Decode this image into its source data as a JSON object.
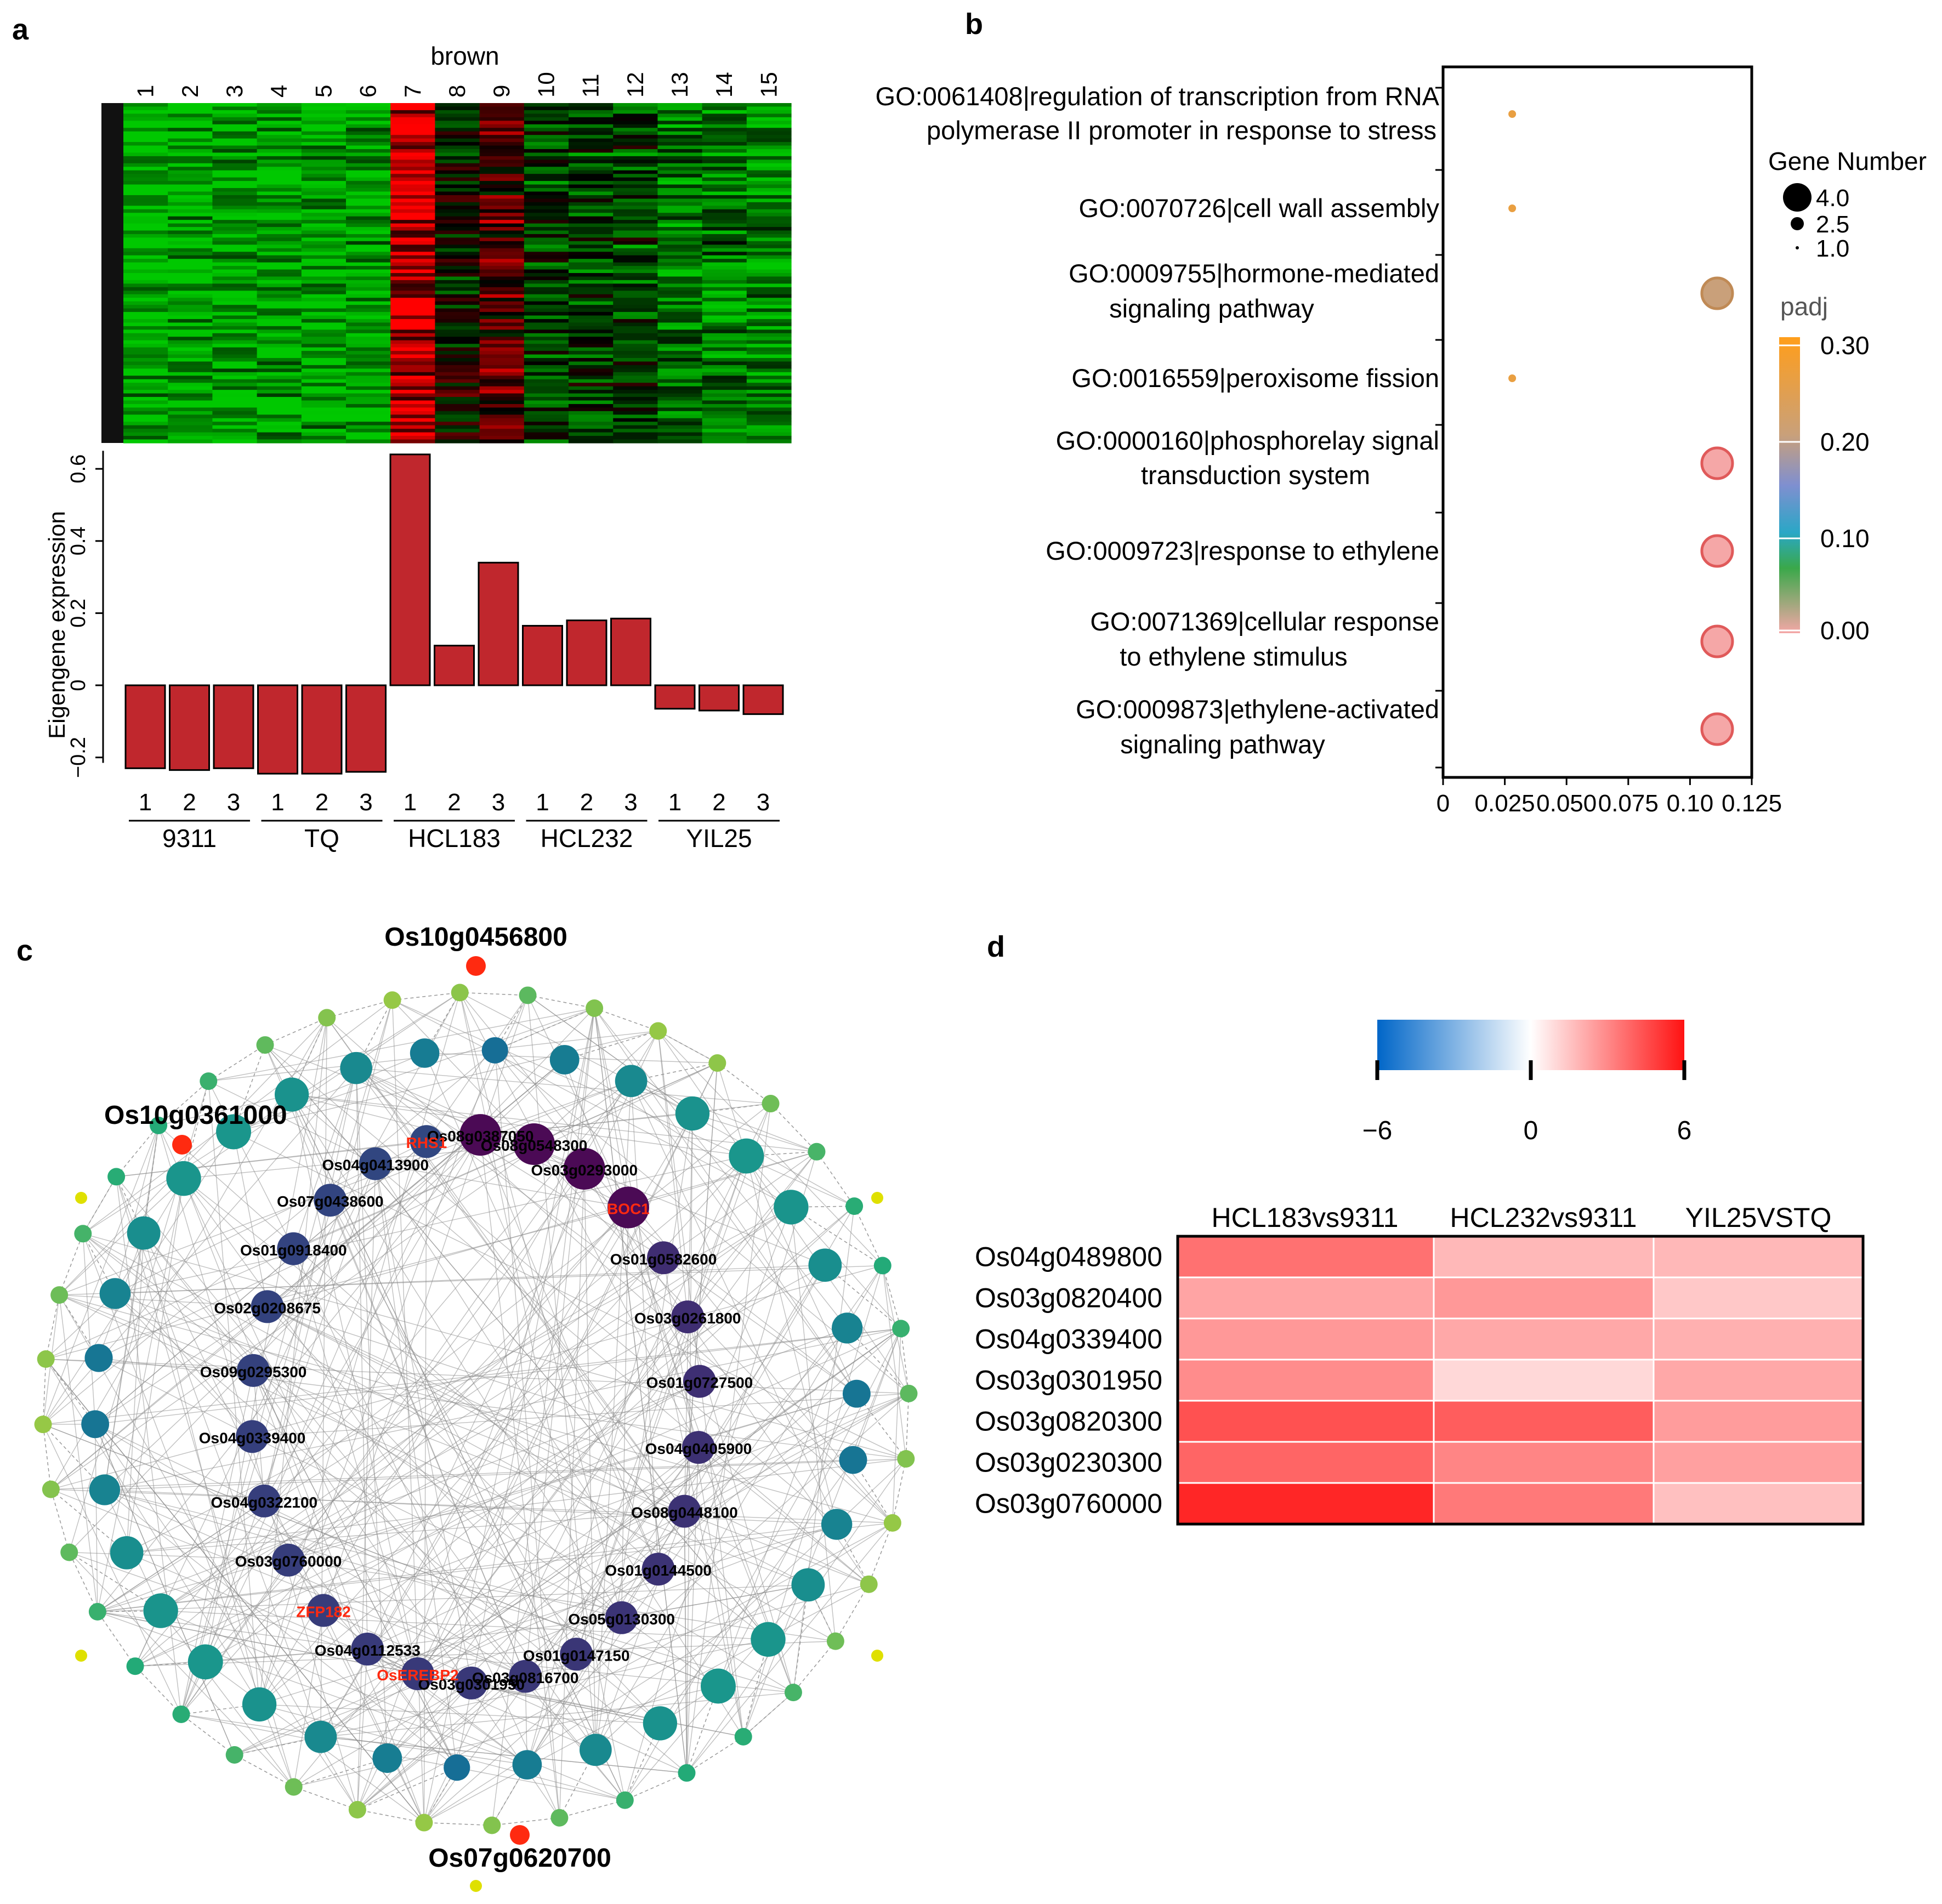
{
  "panels": {
    "a": "a",
    "b": "b",
    "c": "c",
    "d": "d"
  },
  "colors": {
    "bar": "#c0272d",
    "high": "#ff0000",
    "low": "#00c000",
    "mid": "#000000",
    "neg": "#0070c0",
    "pos": "#ff1a1a"
  },
  "chart_data": [
    {
      "id": "a-heatmap",
      "type": "heatmap",
      "title": "brown",
      "column_labels": [
        "1",
        "2",
        "3",
        "4",
        "5",
        "6",
        "7",
        "8",
        "9",
        "10",
        "11",
        "12",
        "13",
        "14",
        "15"
      ],
      "row_count": 96,
      "column_mean_expression": [
        -0.9,
        -0.9,
        -0.85,
        -0.85,
        -0.85,
        -0.85,
        0.85,
        -0.1,
        0.3,
        -0.3,
        -0.35,
        -0.35,
        -0.6,
        -0.6,
        -0.65
      ],
      "colorscale": [
        "green",
        "black",
        "red"
      ]
    },
    {
      "id": "a-bars",
      "type": "bar",
      "ylabel": "Eigengene expression",
      "ylim": [
        -0.25,
        0.65
      ],
      "yticks": [
        -0.2,
        0,
        0.2,
        0.4,
        0.6
      ],
      "ytick_labels": [
        "−0.2",
        "0",
        "0.2",
        "0.4",
        "0.6"
      ],
      "categories": [
        "1",
        "2",
        "3",
        "1",
        "2",
        "3",
        "1",
        "2",
        "3",
        "1",
        "2",
        "3",
        "1",
        "2",
        "3"
      ],
      "values": [
        -0.23,
        -0.235,
        -0.23,
        -0.245,
        -0.245,
        -0.24,
        0.64,
        0.11,
        0.34,
        0.165,
        0.18,
        0.185,
        -0.065,
        -0.07,
        -0.08
      ],
      "groups": [
        {
          "name": "9311",
          "start": 0,
          "end": 2
        },
        {
          "name": "TQ",
          "start": 3,
          "end": 5
        },
        {
          "name": "HCL183",
          "start": 6,
          "end": 8
        },
        {
          "name": "HCL232",
          "start": 9,
          "end": 11
        },
        {
          "name": "YIL25",
          "start": 12,
          "end": 14
        }
      ]
    },
    {
      "id": "b-dotplot",
      "type": "scatter",
      "xlim": [
        0,
        0.125
      ],
      "xticks": [
        0,
        0.025,
        0.05,
        0.075,
        0.1,
        0.125
      ],
      "xtick_labels": [
        "0",
        "0.025",
        "0.050",
        "0.075",
        "0.10",
        "0.125"
      ],
      "terms": [
        {
          "line1": "GO:0061408|regulation of transcription from RNA",
          "line2": "polymerase II promoter in response to stress",
          "x": 0.028,
          "genes": 1,
          "padj": 0.28
        },
        {
          "line1": "GO:0070726|cell wall assembly",
          "line2": "",
          "x": 0.028,
          "genes": 1,
          "padj": 0.28
        },
        {
          "line1": "GO:0009755|hormone-mediated",
          "line2": "signaling pathway",
          "x": 0.111,
          "genes": 4,
          "padj": 0.25
        },
        {
          "line1": "GO:0016559|peroxisome fission",
          "line2": "",
          "x": 0.028,
          "genes": 1,
          "padj": 0.28
        },
        {
          "line1": "GO:0000160|phosphorelay signal",
          "line2": "transduction system",
          "x": 0.111,
          "genes": 4,
          "padj": 0.0
        },
        {
          "line1": "GO:0009723|response to ethylene",
          "line2": "",
          "x": 0.111,
          "genes": 4,
          "padj": 0.0
        },
        {
          "line1": "GO:0071369|cellular response",
          "line2": "to ethylene stimulus",
          "x": 0.111,
          "genes": 4,
          "padj": 0.0
        },
        {
          "line1": "GO:0009873|ethylene-activated",
          "line2": "signaling pathway",
          "x": 0.111,
          "genes": 4,
          "padj": 0.0
        }
      ],
      "size_legend": {
        "title": "Gene Number",
        "values": [
          4.0,
          2.5,
          1.0
        ],
        "labels": [
          "4.0",
          "2.5",
          "1.0"
        ]
      },
      "color_legend": {
        "title": "padj",
        "ticks": [
          0.3,
          0.2,
          0.1,
          0.0
        ],
        "labels": [
          "0.30",
          "0.20",
          "0.10",
          "0.00"
        ]
      }
    },
    {
      "id": "c-network",
      "type": "network",
      "hub_labels": [
        "Os10g0456800",
        "Os10g0361000",
        "Os07g0620700"
      ],
      "inner_ring": [
        {
          "name": "Os08g0387050",
          "label": "Os08g0387050",
          "red": false
        },
        {
          "name": "Os08g0548300",
          "label": "Os08g0548300",
          "red": false
        },
        {
          "name": "Os03g0293000",
          "label": "Os03g0293000",
          "red": false
        },
        {
          "name": "BOC1",
          "label": "BOC1",
          "red": true
        },
        {
          "name": "Os01g0582600",
          "label": "Os01g0582600",
          "red": false
        },
        {
          "name": "Os03g0261800",
          "label": "Os03g0261800",
          "red": false
        },
        {
          "name": "Os01g0727500",
          "label": "Os01g0727500",
          "red": false
        },
        {
          "name": "Os04g0405900",
          "label": "Os04g0405900",
          "red": false
        },
        {
          "name": "Os08g0448100",
          "label": "Os08g0448100",
          "red": false
        },
        {
          "name": "Os01g0144500",
          "label": "Os01g0144500",
          "red": false
        },
        {
          "name": "Os05g0130300",
          "label": "Os05g0130300",
          "red": false
        },
        {
          "name": "Os01g0147150",
          "label": "Os01g0147150",
          "red": false
        },
        {
          "name": "Os03g0816700",
          "label": "Os03g0816700",
          "red": false
        },
        {
          "name": "Os03g0301950",
          "label": "Os03g0301950",
          "red": false
        },
        {
          "name": "OsEREBP2",
          "label": "OsEREBP2",
          "red": true
        },
        {
          "name": "Os04g0112533",
          "label": "Os04g0112533",
          "red": false
        },
        {
          "name": "ZFP182",
          "label": "ZFP182",
          "red": true
        },
        {
          "name": "Os03g0760000",
          "label": "Os03g0760000",
          "red": false
        },
        {
          "name": "Os04g0322100",
          "label": "Os04g0322100",
          "red": false
        },
        {
          "name": "Os04g0339400",
          "label": "Os04g0339400",
          "red": false
        },
        {
          "name": "Os09g0295300",
          "label": "Os09g0295300",
          "red": false
        },
        {
          "name": "Os02g0208675",
          "label": "Os02g0208675",
          "red": false
        },
        {
          "name": "Os01g0918400",
          "label": "Os01g0918400",
          "red": false
        },
        {
          "name": "Os07g0438600",
          "label": "Os07g0438600",
          "red": false
        },
        {
          "name": "Os04g0413900",
          "label": "Os04g0413900",
          "red": false
        },
        {
          "name": "RHS1",
          "label": "RHS1",
          "red": true
        }
      ]
    },
    {
      "id": "d-heatmap",
      "type": "heatmap",
      "columns": [
        "HCL183vs9311",
        "HCL232vs9311",
        "YIL25VSTQ"
      ],
      "rows": [
        "Os04g0489800",
        "Os03g0820400",
        "Os04g0339400",
        "Os03g0301950",
        "Os03g0820300",
        "Os03g0230300",
        "Os03g0760000"
      ],
      "values": [
        [
          3.6,
          1.8,
          1.8
        ],
        [
          2.3,
          2.6,
          1.4
        ],
        [
          2.6,
          2.2,
          2.0
        ],
        [
          2.9,
          1.0,
          2.2
        ],
        [
          4.4,
          4.1,
          2.5
        ],
        [
          3.9,
          3.1,
          2.4
        ],
        [
          5.5,
          3.4,
          1.6
        ]
      ],
      "colorbar": {
        "min": -6,
        "max": 6,
        "ticks": [
          -6,
          0,
          6
        ],
        "labels": [
          "−6",
          "0",
          "6"
        ]
      }
    }
  ]
}
